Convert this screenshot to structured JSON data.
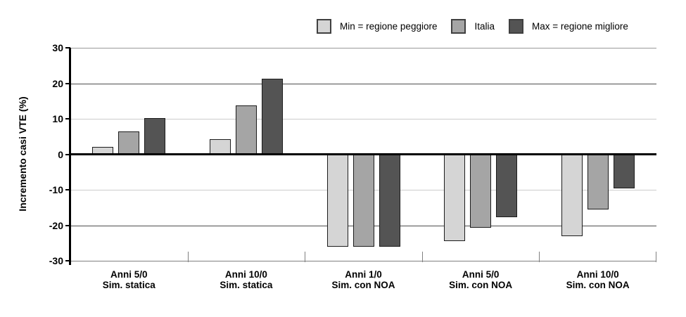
{
  "chart_data": {
    "type": "bar",
    "title": "",
    "ylabel": "Incremento casi VTE (%)",
    "xlabel": "",
    "ylim": [
      -30,
      30
    ],
    "yticks": [
      30,
      20,
      10,
      0,
      -10,
      -20,
      -30
    ],
    "grid": true,
    "legend_position": "top-right",
    "categories": [
      {
        "line1": "Anni 5/0",
        "line2": "Sim. statica"
      },
      {
        "line1": "Anni 10/0",
        "line2": "Sim. statica"
      },
      {
        "line1": "Anni 1/0",
        "line2": "Sim. con NOA"
      },
      {
        "line1": "Anni 5/0",
        "line2": "Sim. con NOA"
      },
      {
        "line1": "Anni 10/0",
        "line2": "Sim. con NOA"
      }
    ],
    "series": [
      {
        "name": "Min = regione peggiore",
        "color": "#d5d5d5",
        "values": [
          2.1,
          4.2,
          -26.0,
          -24.5,
          -23.0
        ]
      },
      {
        "name": "Italia",
        "color": "#a5a5a5",
        "values": [
          6.5,
          13.7,
          -26.0,
          -20.7,
          -15.5
        ]
      },
      {
        "name": "Max = regione migliore",
        "color": "#545454",
        "values": [
          10.2,
          21.3,
          -26.0,
          -17.8,
          -9.7
        ]
      }
    ],
    "gridline_colors": {
      "30": "#999999",
      "20": "#4d4d4d",
      "10": "#cccccc",
      "0": "#000000",
      "-10": "#cccccc",
      "-20": "#4d4d4d",
      "-30": "#808080"
    }
  }
}
